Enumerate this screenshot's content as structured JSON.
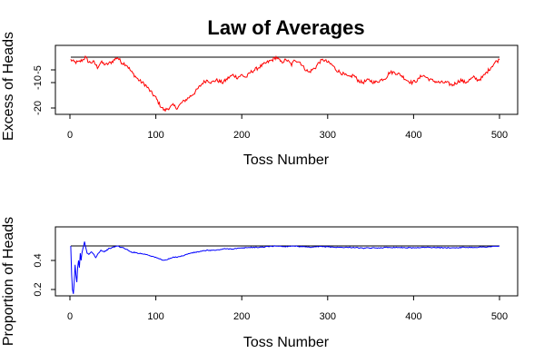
{
  "title": "Law of Averages",
  "chart_data": [
    {
      "type": "line",
      "xlabel": "Toss Number",
      "ylabel": "Excess of Heads",
      "xlim": [
        0,
        500
      ],
      "ylim": [
        -21,
        0
      ],
      "xticks": [
        0,
        100,
        200,
        300,
        400,
        500
      ],
      "yticks": [
        -20,
        -10,
        -5
      ],
      "reference_line": 0,
      "reference_color": "#000000",
      "series": [
        {
          "color": "#ff0000",
          "keypoints": [
            [
              1,
              -1
            ],
            [
              5,
              -2
            ],
            [
              10,
              -2
            ],
            [
              15,
              -1
            ],
            [
              18,
              0
            ],
            [
              22,
              -2
            ],
            [
              28,
              -2
            ],
            [
              32,
              -4
            ],
            [
              36,
              -2
            ],
            [
              42,
              -3
            ],
            [
              48,
              -2
            ],
            [
              52,
              -1
            ],
            [
              55,
              0
            ],
            [
              60,
              -2
            ],
            [
              66,
              -3
            ],
            [
              72,
              -6
            ],
            [
              80,
              -9
            ],
            [
              88,
              -11
            ],
            [
              95,
              -14
            ],
            [
              100,
              -16
            ],
            [
              105,
              -19
            ],
            [
              110,
              -21
            ],
            [
              115,
              -20
            ],
            [
              120,
              -19
            ],
            [
              125,
              -20
            ],
            [
              130,
              -18
            ],
            [
              138,
              -16
            ],
            [
              145,
              -14
            ],
            [
              150,
              -12
            ],
            [
              155,
              -10
            ],
            [
              160,
              -9
            ],
            [
              165,
              -10
            ],
            [
              170,
              -9
            ],
            [
              178,
              -10
            ],
            [
              185,
              -8
            ],
            [
              190,
              -7
            ],
            [
              195,
              -8
            ],
            [
              200,
              -7
            ],
            [
              205,
              -8
            ],
            [
              210,
              -6
            ],
            [
              215,
              -5
            ],
            [
              220,
              -4
            ],
            [
              225,
              -3
            ],
            [
              230,
              -2
            ],
            [
              236,
              -1
            ],
            [
              240,
              0
            ],
            [
              246,
              -2
            ],
            [
              252,
              -1
            ],
            [
              258,
              -3
            ],
            [
              262,
              -1
            ],
            [
              268,
              -2
            ],
            [
              272,
              -4
            ],
            [
              278,
              -6
            ],
            [
              282,
              -5
            ],
            [
              286,
              -4
            ],
            [
              290,
              -2
            ],
            [
              295,
              -1
            ],
            [
              300,
              -2
            ],
            [
              305,
              -3
            ],
            [
              310,
              -5
            ],
            [
              315,
              -6
            ],
            [
              320,
              -7
            ],
            [
              325,
              -8
            ],
            [
              330,
              -7
            ],
            [
              335,
              -9
            ],
            [
              340,
              -10
            ],
            [
              348,
              -9
            ],
            [
              355,
              -10
            ],
            [
              362,
              -9
            ],
            [
              368,
              -8
            ],
            [
              372,
              -6
            ],
            [
              378,
              -6
            ],
            [
              385,
              -7
            ],
            [
              392,
              -9
            ],
            [
              398,
              -10
            ],
            [
              405,
              -9
            ],
            [
              410,
              -7
            ],
            [
              415,
              -8
            ],
            [
              420,
              -9
            ],
            [
              430,
              -10
            ],
            [
              438,
              -10
            ],
            [
              445,
              -11
            ],
            [
              450,
              -10
            ],
            [
              455,
              -9
            ],
            [
              460,
              -10
            ],
            [
              465,
              -9
            ],
            [
              470,
              -8
            ],
            [
              475,
              -9
            ],
            [
              480,
              -8
            ],
            [
              485,
              -6
            ],
            [
              490,
              -4
            ],
            [
              495,
              -2
            ],
            [
              500,
              -1
            ]
          ]
        }
      ]
    },
    {
      "type": "line",
      "xlabel": "Toss Number",
      "ylabel": "Proportion of Heads",
      "xlim": [
        0,
        500
      ],
      "ylim": [
        0.15,
        0.55
      ],
      "xticks": [
        0,
        100,
        200,
        300,
        400,
        500
      ],
      "yticks": [
        0.2,
        0.4
      ],
      "reference_line": 0.5,
      "reference_color": "#000000",
      "series": [
        {
          "color": "#0000ff",
          "keypoints": [
            [
              1,
              0.5
            ],
            [
              2,
              0.3
            ],
            [
              3,
              0.2
            ],
            [
              4,
              0.17
            ],
            [
              5,
              0.25
            ],
            [
              6,
              0.37
            ],
            [
              7,
              0.3
            ],
            [
              8,
              0.25
            ],
            [
              9,
              0.35
            ],
            [
              10,
              0.4
            ],
            [
              11,
              0.35
            ],
            [
              12,
              0.45
            ],
            [
              13,
              0.4
            ],
            [
              14,
              0.45
            ],
            [
              15,
              0.48
            ],
            [
              16,
              0.5
            ],
            [
              17,
              0.53
            ],
            [
              18,
              0.5
            ],
            [
              20,
              0.45
            ],
            [
              22,
              0.44
            ],
            [
              25,
              0.46
            ],
            [
              28,
              0.44
            ],
            [
              30,
              0.42
            ],
            [
              33,
              0.45
            ],
            [
              36,
              0.47
            ],
            [
              40,
              0.46
            ],
            [
              45,
              0.48
            ],
            [
              50,
              0.49
            ],
            [
              55,
              0.5
            ],
            [
              60,
              0.49
            ],
            [
              65,
              0.48
            ],
            [
              70,
              0.46
            ],
            [
              80,
              0.45
            ],
            [
              90,
              0.44
            ],
            [
              100,
              0.42
            ],
            [
              105,
              0.41
            ],
            [
              110,
              0.4
            ],
            [
              115,
              0.41
            ],
            [
              120,
              0.42
            ],
            [
              130,
              0.43
            ],
            [
              140,
              0.45
            ],
            [
              150,
              0.46
            ],
            [
              160,
              0.47
            ],
            [
              170,
              0.47
            ],
            [
              180,
              0.48
            ],
            [
              190,
              0.48
            ],
            [
              200,
              0.485
            ],
            [
              210,
              0.49
            ],
            [
              220,
              0.49
            ],
            [
              230,
              0.495
            ],
            [
              240,
              0.5
            ],
            [
              250,
              0.495
            ],
            [
              260,
              0.5
            ],
            [
              270,
              0.495
            ],
            [
              280,
              0.49
            ],
            [
              290,
              0.495
            ],
            [
              300,
              0.495
            ],
            [
              310,
              0.49
            ],
            [
              320,
              0.49
            ],
            [
              330,
              0.49
            ],
            [
              340,
              0.485
            ],
            [
              350,
              0.485
            ],
            [
              360,
              0.487
            ],
            [
              370,
              0.49
            ],
            [
              380,
              0.49
            ],
            [
              390,
              0.488
            ],
            [
              400,
              0.487
            ],
            [
              410,
              0.49
            ],
            [
              420,
              0.49
            ],
            [
              430,
              0.488
            ],
            [
              440,
              0.487
            ],
            [
              450,
              0.488
            ],
            [
              460,
              0.49
            ],
            [
              470,
              0.49
            ],
            [
              480,
              0.492
            ],
            [
              490,
              0.495
            ],
            [
              500,
              0.498
            ]
          ]
        }
      ]
    }
  ]
}
